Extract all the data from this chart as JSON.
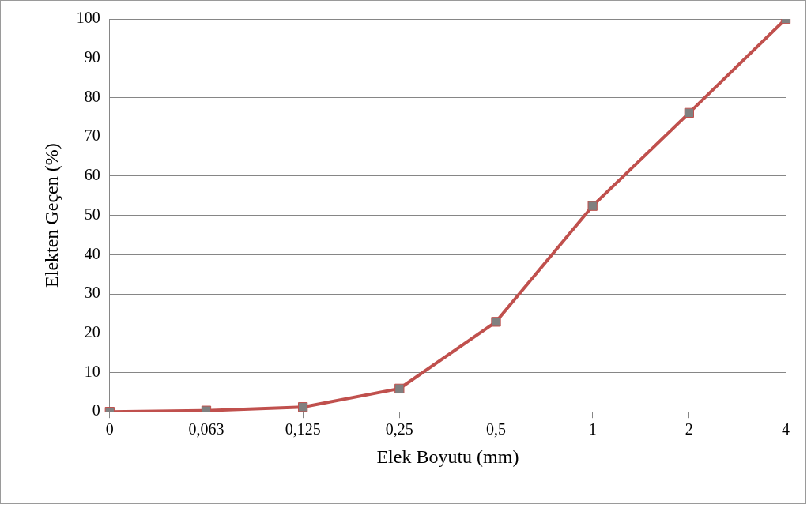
{
  "chart_data": {
    "type": "line",
    "xlabel": "Elek Boyutu (mm)",
    "ylabel": "Elekten Geçen (%)",
    "categories": [
      "0",
      "0,063",
      "0,125",
      "0,25",
      "0,5",
      "1",
      "2",
      "4"
    ],
    "series": [
      {
        "color": "#c0504d",
        "values": [
          0,
          0.3,
          1.2,
          5.9,
          22.9,
          52.4,
          76.1,
          100
        ]
      }
    ],
    "ylim": [
      0,
      100
    ],
    "yticks": [
      0,
      10,
      20,
      30,
      40,
      50,
      60,
      70,
      80,
      90,
      100
    ],
    "grid": "y",
    "marker": "square",
    "line_style": "solid"
  }
}
